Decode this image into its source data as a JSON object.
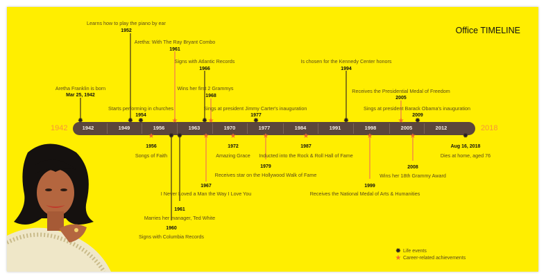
{
  "title": {
    "brand": "Office",
    "word": "TIMELINE"
  },
  "axis": {
    "start": "1942",
    "end": "2018",
    "ticks": [
      "1942",
      "1949",
      "1956",
      "1963",
      "1970",
      "1977",
      "1984",
      "1991",
      "1998",
      "2005",
      "2012"
    ]
  },
  "colors": {
    "background": "#FFEE00",
    "bar": "#5b463c",
    "life": "#2a2020",
    "career": "#f26b2e",
    "end_years": "#f7953a"
  },
  "legend": [
    {
      "icon": "life-event-icon",
      "label": "Life events"
    },
    {
      "icon": "star-icon",
      "label": "Career-related achievements"
    }
  ],
  "events": [
    {
      "date": "Mar 25, 1942",
      "text": "Aretha Franklin is born",
      "type": "life"
    },
    {
      "date": "1952",
      "text": "Learns how to play the piano by ear",
      "type": "life"
    },
    {
      "date": "1954",
      "text": "Starts performing in churches",
      "type": "life"
    },
    {
      "date": "1961",
      "text": "Aretha: With The Ray Bryant Combo",
      "type": "career"
    },
    {
      "date": "1966",
      "text": "Signs with Atlantic Records",
      "type": "life"
    },
    {
      "date": "1968",
      "text": "Wins her first 2 Grammys",
      "type": "career"
    },
    {
      "date": "1977",
      "text": "Sings at president Jimmy Carter's inauguration",
      "type": "life"
    },
    {
      "date": "1994",
      "text": "Is chosen for the Kennedy Center honors",
      "type": "life"
    },
    {
      "date": "2005",
      "text": "Receives the Presidential Medal of Freedom",
      "type": "career"
    },
    {
      "date": "2009",
      "text": "Sings at president Barack Obama's inauguration",
      "type": "life"
    },
    {
      "date": "1956",
      "text": "Songs of Faith",
      "type": "career"
    },
    {
      "date": "1960",
      "text": "Signs with Columbia Records",
      "type": "life"
    },
    {
      "date": "1961",
      "text": "Marries her manager, Ted White",
      "type": "life"
    },
    {
      "date": "1967",
      "text": "I Never Loved a Man the Way I Love You",
      "type": "career"
    },
    {
      "date": "1972",
      "text": "Amazing Grace",
      "type": "career"
    },
    {
      "date": "1979",
      "text": "Receives star on the Hollywood Walk of Fame",
      "type": "career"
    },
    {
      "date": "1987",
      "text": "Inducted into the Rock & Roll Hall of Fame",
      "type": "career"
    },
    {
      "date": "1999",
      "text": "Receives the National Medal of Arts & Humanities",
      "type": "career"
    },
    {
      "date": "2008",
      "text": "Wins her 18th Grammy Award",
      "type": "career"
    },
    {
      "date": "Aug 16, 2018",
      "text": "Dies at home, aged 76",
      "type": "life"
    }
  ]
}
